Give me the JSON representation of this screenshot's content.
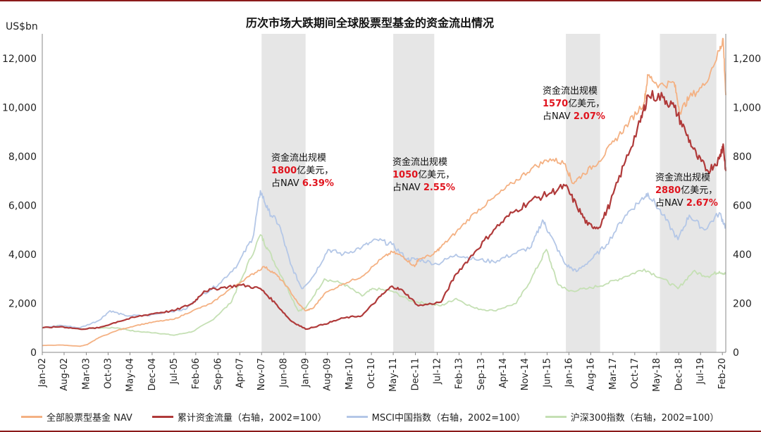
{
  "chart_data": {
    "type": "line",
    "title": "历次市场大跌期间全球股票型基金的资金流出情况",
    "ylabel_left": "US$bn",
    "ylim_left": [
      0,
      13000
    ],
    "ylim_right": [
      0,
      1300
    ],
    "yticks_left": [
      "0",
      "2,000",
      "4,000",
      "6,000",
      "8,000",
      "10,000",
      "12,000"
    ],
    "yticks_left_values": [
      0,
      2000,
      4000,
      6000,
      8000,
      10000,
      12000
    ],
    "yticks_right": [
      "0",
      "200",
      "400",
      "600",
      "800",
      "1,000",
      "1,200"
    ],
    "yticks_right_values": [
      0,
      200,
      400,
      600,
      800,
      1000,
      1200
    ],
    "x_start": 2002.0,
    "x_end": 2020.17,
    "xtick_labels": [
      "Jan-02",
      "Aug-02",
      "Mar-03",
      "Oct-03",
      "May-04",
      "Dec-04",
      "Jul-05",
      "Feb-06",
      "Sep-06",
      "Apr-07",
      "Nov-07",
      "Jun-08",
      "Jan-09",
      "Aug-09",
      "Mar-10",
      "Oct-10",
      "May-11",
      "Dec-11",
      "Jul-12",
      "Feb-13",
      "Sep-13",
      "Apr-14",
      "Nov-14",
      "Jun-15",
      "Jan-16",
      "Aug-16",
      "Mar-17",
      "Oct-17",
      "May-18",
      "Dec-18",
      "Jul-19",
      "Feb-20"
    ],
    "xtick_values": [
      2002.0,
      2002.58,
      2003.17,
      2003.75,
      2004.33,
      2004.92,
      2005.5,
      2006.08,
      2006.67,
      2007.25,
      2007.83,
      2008.42,
      2009.0,
      2009.58,
      2010.17,
      2010.75,
      2011.33,
      2011.92,
      2012.5,
      2013.08,
      2013.67,
      2014.25,
      2014.83,
      2015.42,
      2016.0,
      2016.58,
      2017.17,
      2017.75,
      2018.33,
      2018.92,
      2019.5,
      2020.08
    ],
    "shaded_periods": [
      [
        2007.83,
        2009.0
      ],
      [
        2011.33,
        2012.42
      ],
      [
        2015.92,
        2016.83
      ],
      [
        2018.42,
        2019.92
      ]
    ],
    "series": [
      {
        "name": "全部股票型基金 NAV",
        "axis": "left",
        "color": "#f4b183",
        "points": [
          [
            2002.0,
            280
          ],
          [
            2002.5,
            300
          ],
          [
            2003.0,
            250
          ],
          [
            2003.2,
            320
          ],
          [
            2003.5,
            600
          ],
          [
            2004.0,
            900
          ],
          [
            2004.5,
            1100
          ],
          [
            2005.0,
            1250
          ],
          [
            2005.5,
            1350
          ],
          [
            2006.0,
            1700
          ],
          [
            2006.5,
            2000
          ],
          [
            2007.0,
            2600
          ],
          [
            2007.5,
            3100
          ],
          [
            2007.9,
            3500
          ],
          [
            2008.2,
            3200
          ],
          [
            2008.5,
            2700
          ],
          [
            2008.8,
            2000
          ],
          [
            2009.0,
            1700
          ],
          [
            2009.2,
            1800
          ],
          [
            2009.5,
            2400
          ],
          [
            2010.0,
            2800
          ],
          [
            2010.5,
            3100
          ],
          [
            2011.0,
            3800
          ],
          [
            2011.3,
            4100
          ],
          [
            2011.6,
            3900
          ],
          [
            2011.9,
            3500
          ],
          [
            2012.0,
            3800
          ],
          [
            2012.4,
            4000
          ],
          [
            2012.6,
            4300
          ],
          [
            2013.0,
            4900
          ],
          [
            2013.5,
            5700
          ],
          [
            2014.0,
            6300
          ],
          [
            2014.5,
            6900
          ],
          [
            2015.0,
            7500
          ],
          [
            2015.5,
            7900
          ],
          [
            2015.9,
            7700
          ],
          [
            2016.1,
            6900
          ],
          [
            2016.4,
            7300
          ],
          [
            2016.8,
            7800
          ],
          [
            2017.2,
            8600
          ],
          [
            2017.6,
            9400
          ],
          [
            2018.0,
            10200
          ],
          [
            2018.1,
            11300
          ],
          [
            2018.4,
            10900
          ],
          [
            2018.8,
            11000
          ],
          [
            2018.95,
            9800
          ],
          [
            2019.2,
            10400
          ],
          [
            2019.6,
            10900
          ],
          [
            2020.0,
            12300
          ],
          [
            2020.1,
            12800
          ],
          [
            2020.17,
            10500
          ]
        ]
      },
      {
        "name": "累计资金流量（右轴，2002=100）",
        "axis": "right",
        "color": "#b03a3a",
        "points": [
          [
            2002.0,
            100
          ],
          [
            2002.5,
            105
          ],
          [
            2003.0,
            95
          ],
          [
            2003.5,
            100
          ],
          [
            2004.0,
            125
          ],
          [
            2004.5,
            145
          ],
          [
            2005.0,
            160
          ],
          [
            2005.5,
            170
          ],
          [
            2006.0,
            200
          ],
          [
            2006.3,
            250
          ],
          [
            2006.8,
            265
          ],
          [
            2007.3,
            275
          ],
          [
            2007.8,
            260
          ],
          [
            2008.2,
            200
          ],
          [
            2008.6,
            130
          ],
          [
            2009.0,
            95
          ],
          [
            2009.5,
            115
          ],
          [
            2010.0,
            140
          ],
          [
            2010.5,
            150
          ],
          [
            2011.0,
            230
          ],
          [
            2011.3,
            270
          ],
          [
            2011.6,
            250
          ],
          [
            2012.0,
            190
          ],
          [
            2012.6,
            205
          ],
          [
            2013.0,
            320
          ],
          [
            2013.5,
            410
          ],
          [
            2014.0,
            500
          ],
          [
            2014.5,
            570
          ],
          [
            2015.0,
            620
          ],
          [
            2015.5,
            650
          ],
          [
            2015.9,
            680
          ],
          [
            2016.2,
            600
          ],
          [
            2016.5,
            520
          ],
          [
            2016.8,
            510
          ],
          [
            2017.1,
            610
          ],
          [
            2017.5,
            780
          ],
          [
            2017.9,
            940
          ],
          [
            2018.1,
            1050
          ],
          [
            2018.5,
            1040
          ],
          [
            2018.8,
            1000
          ],
          [
            2019.1,
            900
          ],
          [
            2019.4,
            800
          ],
          [
            2019.7,
            740
          ],
          [
            2020.0,
            790
          ],
          [
            2020.1,
            850
          ],
          [
            2020.17,
            740
          ]
        ]
      },
      {
        "name": "MSCI中国指数（右轴，2002=100）",
        "axis": "right",
        "color": "#b4c7e7",
        "points": [
          [
            2002.0,
            100
          ],
          [
            2002.5,
            110
          ],
          [
            2003.0,
            100
          ],
          [
            2003.5,
            130
          ],
          [
            2003.8,
            170
          ],
          [
            2004.2,
            150
          ],
          [
            2004.8,
            150
          ],
          [
            2005.3,
            165
          ],
          [
            2005.8,
            175
          ],
          [
            2006.2,
            230
          ],
          [
            2006.7,
            280
          ],
          [
            2007.2,
            360
          ],
          [
            2007.6,
            470
          ],
          [
            2007.8,
            660
          ],
          [
            2008.0,
            580
          ],
          [
            2008.3,
            520
          ],
          [
            2008.6,
            360
          ],
          [
            2008.9,
            260
          ],
          [
            2009.2,
            310
          ],
          [
            2009.6,
            420
          ],
          [
            2010.0,
            400
          ],
          [
            2010.5,
            430
          ],
          [
            2010.9,
            460
          ],
          [
            2011.3,
            440
          ],
          [
            2011.7,
            380
          ],
          [
            2012.0,
            380
          ],
          [
            2012.5,
            360
          ],
          [
            2013.0,
            400
          ],
          [
            2013.5,
            380
          ],
          [
            2014.0,
            370
          ],
          [
            2014.5,
            400
          ],
          [
            2015.0,
            430
          ],
          [
            2015.3,
            540
          ],
          [
            2015.5,
            480
          ],
          [
            2015.9,
            360
          ],
          [
            2016.2,
            330
          ],
          [
            2016.6,
            380
          ],
          [
            2017.0,
            440
          ],
          [
            2017.5,
            560
          ],
          [
            2017.9,
            620
          ],
          [
            2018.1,
            650
          ],
          [
            2018.5,
            560
          ],
          [
            2018.9,
            460
          ],
          [
            2019.2,
            560
          ],
          [
            2019.6,
            500
          ],
          [
            2020.0,
            570
          ],
          [
            2020.17,
            510
          ]
        ]
      },
      {
        "name": "沪深300指数（右轴，2002=100）",
        "axis": "right",
        "color": "#c5e0b4",
        "points": [
          [
            2002.0,
            100
          ],
          [
            2002.5,
            110
          ],
          [
            2003.0,
            95
          ],
          [
            2003.5,
            100
          ],
          [
            2004.0,
            100
          ],
          [
            2004.5,
            85
          ],
          [
            2005.0,
            80
          ],
          [
            2005.5,
            70
          ],
          [
            2006.0,
            85
          ],
          [
            2006.5,
            130
          ],
          [
            2007.0,
            200
          ],
          [
            2007.3,
            300
          ],
          [
            2007.8,
            480
          ],
          [
            2008.0,
            420
          ],
          [
            2008.4,
            300
          ],
          [
            2008.8,
            170
          ],
          [
            2009.0,
            180
          ],
          [
            2009.5,
            300
          ],
          [
            2010.0,
            280
          ],
          [
            2010.5,
            230
          ],
          [
            2010.8,
            260
          ],
          [
            2011.3,
            250
          ],
          [
            2011.8,
            210
          ],
          [
            2012.2,
            200
          ],
          [
            2012.6,
            190
          ],
          [
            2013.0,
            220
          ],
          [
            2013.5,
            180
          ],
          [
            2014.0,
            170
          ],
          [
            2014.6,
            200
          ],
          [
            2015.0,
            300
          ],
          [
            2015.4,
            420
          ],
          [
            2015.7,
            280
          ],
          [
            2016.0,
            250
          ],
          [
            2016.5,
            260
          ],
          [
            2017.0,
            280
          ],
          [
            2017.5,
            310
          ],
          [
            2018.0,
            340
          ],
          [
            2018.5,
            300
          ],
          [
            2018.9,
            260
          ],
          [
            2019.3,
            330
          ],
          [
            2019.7,
            310
          ],
          [
            2020.0,
            330
          ],
          [
            2020.17,
            320
          ]
        ]
      }
    ],
    "annotations": [
      {
        "id": "a1",
        "line1": "资金流出规模",
        "value": "1800",
        "unit": "亿美元，",
        "pre": "占NAV ",
        "pct": "6.39%"
      },
      {
        "id": "a2",
        "line1": "资金流出规模",
        "value": "1050",
        "unit": "亿美元，",
        "pre": "占NAV ",
        "pct": "2.55%"
      },
      {
        "id": "a3",
        "line1": "资金流出规模",
        "value": "1570",
        "unit": "亿美元，",
        "pre": "占NAV ",
        "pct": "2.07%"
      },
      {
        "id": "a4",
        "line1": "资金流出规模",
        "value": "2880",
        "unit": "亿美元，",
        "pre": "占NAV ",
        "pct": "2.67%"
      }
    ]
  }
}
